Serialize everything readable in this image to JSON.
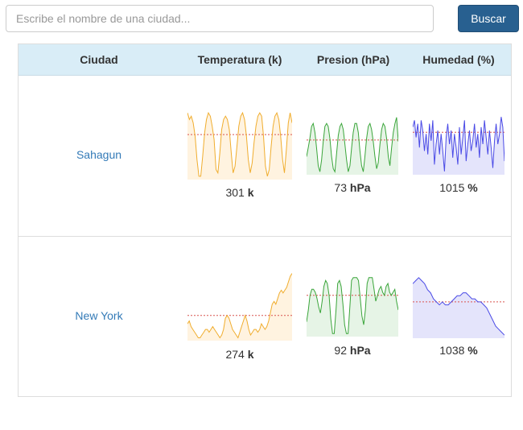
{
  "search": {
    "placeholder": "Escribe el nombre de una ciudad...",
    "value": "",
    "button_label": "Buscar"
  },
  "table": {
    "headers": {
      "city": "Ciudad",
      "temperature": "Temperatura (k)",
      "pressure": "Presion (hPa)",
      "humidity": "Humedad (%)"
    },
    "rows": [
      {
        "city": "Sahagun",
        "temperature": {
          "value": "301",
          "unit": "k"
        },
        "pressure": {
          "value": "73",
          "unit": "hPa"
        },
        "humidity": {
          "value": "1015",
          "unit": "%"
        }
      },
      {
        "city": "New York",
        "temperature": {
          "value": "274",
          "unit": "k"
        },
        "pressure": {
          "value": "92",
          "unit": "hPa"
        },
        "humidity": {
          "value": "1038",
          "unit": "%"
        }
      }
    ]
  },
  "colors": {
    "temperature_line": "#f0ad2e",
    "temperature_fill": "#fff3e0",
    "pressure_line": "#3aa53a",
    "pressure_fill": "#e6f4e6",
    "humidity_line": "#4a4ae6",
    "humidity_fill": "#e4e4fb",
    "average_line": "#d9534f"
  },
  "chart_data": [
    {
      "type": "line",
      "title": "Sahagun temperatura",
      "values": [
        19,
        17,
        18,
        16,
        12,
        5,
        0,
        0,
        6,
        13,
        17,
        19,
        18,
        15,
        11,
        2,
        1,
        7,
        14,
        17,
        18,
        17,
        14,
        7,
        1,
        3,
        9,
        15,
        18,
        19,
        17,
        12,
        5,
        1,
        4,
        10,
        15,
        18,
        19,
        18,
        12,
        3,
        0,
        2,
        9,
        15,
        18,
        19,
        17,
        12,
        5,
        1,
        8,
        16,
        19,
        16
      ],
      "average": 12.5,
      "ylim": [
        -1,
        20
      ]
    },
    {
      "type": "line",
      "title": "Sahagun presion",
      "values": [
        6,
        9,
        12,
        16,
        17,
        14,
        9,
        3,
        1,
        5,
        11,
        16,
        17,
        16,
        12,
        6,
        2,
        1,
        7,
        13,
        16,
        17,
        15,
        10,
        5,
        1,
        3,
        9,
        14,
        17,
        17,
        14,
        8,
        3,
        1,
        6,
        12,
        16,
        17,
        15,
        11,
        6,
        2,
        4,
        10,
        15,
        17,
        16,
        12,
        6,
        3,
        9,
        14,
        17,
        19,
        11
      ],
      "average": 11.5,
      "ylim": [
        0,
        20
      ]
    },
    {
      "type": "line",
      "title": "Sahagun humedad",
      "values": [
        14,
        16,
        11,
        15,
        8,
        16,
        13,
        7,
        12,
        6,
        15,
        10,
        16,
        3,
        9,
        13,
        6,
        12,
        7,
        1,
        11,
        15,
        9,
        13,
        5,
        12,
        8,
        3,
        14,
        6,
        11,
        16,
        4,
        9,
        13,
        7,
        10,
        15,
        8,
        12,
        5,
        14,
        9,
        16,
        11,
        6,
        13,
        8,
        2,
        10,
        15,
        9,
        12,
        17,
        14,
        4
      ],
      "average": 12.5,
      "ylim": [
        0,
        18
      ]
    },
    {
      "type": "line",
      "title": "New York temperatura",
      "values": [
        5,
        6,
        4,
        3,
        2,
        1,
        0,
        0,
        1,
        2,
        3,
        3,
        2,
        3,
        4,
        3,
        2,
        1,
        0,
        1,
        3,
        7,
        8,
        7,
        5,
        3,
        2,
        1,
        0,
        2,
        4,
        6,
        8,
        6,
        3,
        1,
        2,
        3,
        3,
        2,
        3,
        5,
        4,
        3,
        4,
        6,
        9,
        12,
        13,
        12,
        14,
        16,
        17,
        16,
        17,
        18,
        20,
        22,
        23
      ],
      "average": 8,
      "ylim": [
        -1,
        24
      ]
    },
    {
      "type": "line",
      "title": "New York presion",
      "values": [
        5,
        9,
        14,
        16,
        16,
        15,
        13,
        10,
        8,
        12,
        17,
        19,
        18,
        14,
        6,
        1,
        1,
        9,
        18,
        19,
        17,
        11,
        4,
        1,
        1,
        10,
        19,
        20,
        20,
        20,
        19,
        13,
        7,
        4,
        9,
        18,
        20,
        20,
        20,
        16,
        12,
        14,
        16,
        17,
        15,
        14,
        17,
        18,
        15,
        14,
        15,
        16,
        12,
        9
      ],
      "average": 14,
      "ylim": [
        0,
        21
      ]
    },
    {
      "type": "line",
      "title": "New York humedad",
      "values": [
        17,
        18,
        19,
        18,
        17,
        15,
        14,
        12,
        11,
        10,
        11,
        10,
        10,
        11,
        12,
        13,
        13,
        14,
        14,
        13,
        12,
        12,
        11,
        11,
        10,
        9,
        7,
        5,
        3,
        2,
        1,
        0
      ],
      "average": 11,
      "ylim": [
        -1,
        20
      ]
    }
  ]
}
